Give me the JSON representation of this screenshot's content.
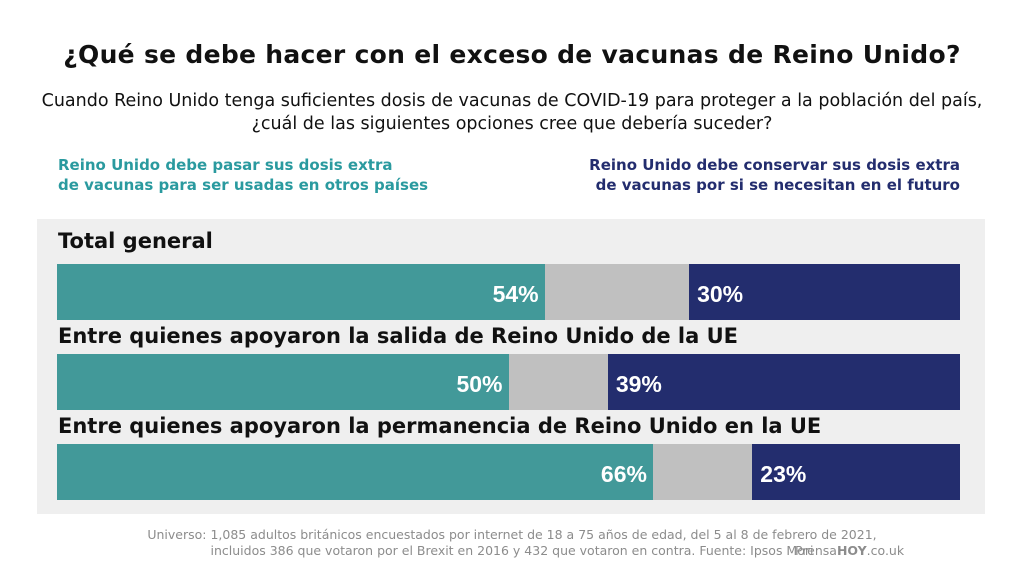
{
  "title": "¿Qué se debe hacer con el exceso de vacunas de Reino Unido?",
  "subtitle": "Cuando Reino Unido tenga suficientes dosis de vacunas de COVID-19 para proteger a la población del país, ¿cuál de las siguientes opciones cree que debería suceder?",
  "legend": {
    "left": {
      "line1": "Reino Unido debe pasar sus dosis extra",
      "line2": "de vacunas para ser usadas en otros países"
    },
    "right": {
      "line1": "Reino Unido debe conservar sus dosis extra",
      "line2": "de vacunas por si se necesitan en el futuro"
    }
  },
  "colors": {
    "left": "#429999",
    "middle": "#c0c0c0",
    "right": "#232d6e",
    "legend_left_text": "#2a9a9f",
    "legend_right_text": "#232d6e"
  },
  "footnote": {
    "line1": "Universo: 1,085 adultos británicos encuestados por internet de 18 a 75 años de edad, del 5 al 8 de febrero de 2021,",
    "line2": "incluidos 386 que votaron por el Brexit en 2016 y 432 que votaron en contra. Fuente: Ipsos Mori"
  },
  "brand": {
    "part1": "Prensa",
    "part2": "HOY",
    "part3": ".co.uk"
  },
  "chart_data": {
    "type": "bar",
    "orientation": "horizontal-stacked",
    "categories": [
      "Total general",
      "Entre quienes apoyaron la salida de Reino Unido de la UE",
      "Entre quienes apoyaron la permanencia de Reino Unido en la UE"
    ],
    "series": [
      {
        "name": "Reino Unido debe pasar sus dosis extra de vacunas para ser usadas en otros países",
        "values": [
          54,
          50,
          66
        ]
      },
      {
        "values": [
          16,
          11,
          11
        ]
      },
      {
        "name": "Reino Unido debe conservar sus dosis extra de vacunas por si se necesitan en el futuro",
        "values": [
          30,
          39,
          23
        ]
      }
    ],
    "value_labels_left": [
      "54%",
      "50%",
      "66%"
    ],
    "value_labels_right": [
      "30%",
      "39%",
      "23%"
    ],
    "xlim": [
      0,
      100
    ],
    "grid": false,
    "legend": "top"
  }
}
